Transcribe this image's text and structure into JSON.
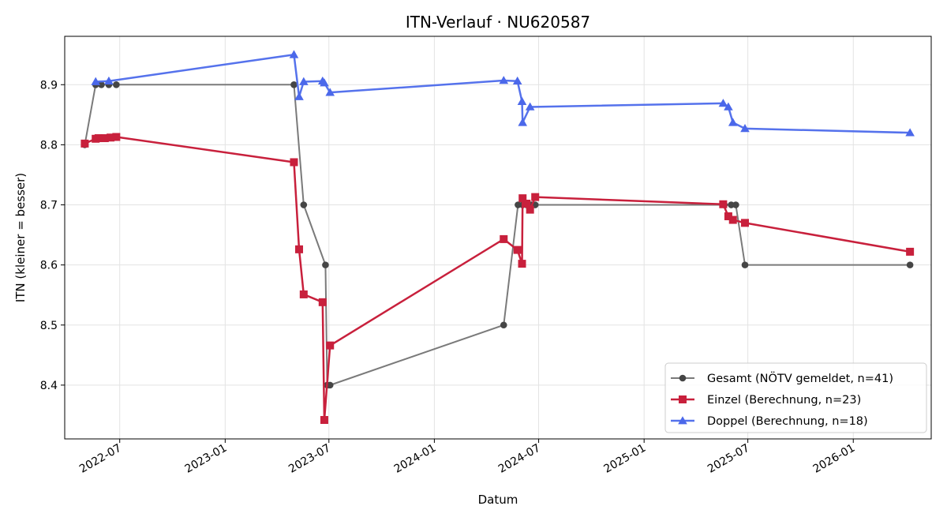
{
  "chart_data": {
    "type": "line",
    "title": "ITN-Verlauf · NU620587",
    "xlabel": "Datum",
    "ylabel": "ITN  (kleiner = besser)",
    "xlim": [
      "2022-03-27",
      "2026-05-17"
    ],
    "ylim": [
      8.3105,
      8.9805
    ],
    "y_ticks": [
      8.4,
      8.5,
      8.6,
      8.7,
      8.8,
      8.9
    ],
    "y_tick_labels": [
      "8.4",
      "8.5",
      "8.6",
      "8.7",
      "8.8",
      "8.9"
    ],
    "x_ticks": [
      "2022-07-01",
      "2023-01-01",
      "2023-07-01",
      "2024-01-01",
      "2024-07-01",
      "2025-01-01",
      "2025-07-01",
      "2026-01-01"
    ],
    "x_tick_labels": [
      "2022-07",
      "2023-01",
      "2023-07",
      "2024-01",
      "2024-07",
      "2025-01",
      "2025-07",
      "2026-01"
    ],
    "grid": true,
    "legend_position": "bottom-right",
    "series": [
      {
        "name": "Gesamt (NÖTV gemeldet, n=41)",
        "color": "#454545",
        "line_color": "#7a7a7a",
        "marker": "circle",
        "points": [
          [
            "2022-05-01",
            8.8
          ],
          [
            "2022-05-20",
            8.9
          ],
          [
            "2022-05-30",
            8.9
          ],
          [
            "2022-06-12",
            8.9
          ],
          [
            "2022-06-25",
            8.9
          ],
          [
            "2023-05-01",
            8.9
          ],
          [
            "2023-05-18",
            8.7
          ],
          [
            "2023-06-25",
            8.6
          ],
          [
            "2023-06-28",
            8.4
          ],
          [
            "2023-07-03",
            8.4
          ],
          [
            "2024-05-01",
            8.5
          ],
          [
            "2024-05-26",
            8.7
          ],
          [
            "2024-06-03",
            8.7
          ],
          [
            "2024-06-10",
            8.7
          ],
          [
            "2024-06-18",
            8.7
          ],
          [
            "2024-06-25",
            8.7
          ],
          [
            "2025-05-21",
            8.7
          ],
          [
            "2025-06-02",
            8.7
          ],
          [
            "2025-06-10",
            8.7
          ],
          [
            "2025-06-26",
            8.6
          ],
          [
            "2026-04-10",
            8.6
          ]
        ]
      },
      {
        "name": "Einzel (Berechnung, n=23)",
        "color": "#c8203c",
        "line_color": "#c8203c",
        "marker": "square",
        "points": [
          [
            "2022-05-01",
            8.802
          ],
          [
            "2022-05-20",
            8.81
          ],
          [
            "2022-05-25",
            8.811
          ],
          [
            "2022-06-05",
            8.811
          ],
          [
            "2022-06-15",
            8.812
          ],
          [
            "2022-06-25",
            8.813
          ],
          [
            "2023-05-01",
            8.771
          ],
          [
            "2023-05-10",
            8.626
          ],
          [
            "2023-05-18",
            8.551
          ],
          [
            "2023-06-20",
            8.538
          ],
          [
            "2023-06-23",
            8.342
          ],
          [
            "2023-07-03",
            8.466
          ],
          [
            "2024-05-01",
            8.643
          ],
          [
            "2024-05-25",
            8.625
          ],
          [
            "2024-06-02",
            8.602
          ],
          [
            "2024-06-03",
            8.711
          ],
          [
            "2024-06-10",
            8.702
          ],
          [
            "2024-06-16",
            8.692
          ],
          [
            "2024-06-25",
            8.713
          ],
          [
            "2025-05-19",
            8.701
          ],
          [
            "2025-05-28",
            8.681
          ],
          [
            "2025-06-05",
            8.675
          ],
          [
            "2025-06-26",
            8.67
          ],
          [
            "2026-04-10",
            8.622
          ]
        ]
      },
      {
        "name": "Doppel (Berechnung, n=18)",
        "color": "#4b68ea",
        "line_color": "#5572ec",
        "marker": "triangle",
        "points": [
          [
            "2022-05-20",
            8.905
          ],
          [
            "2022-06-12",
            8.906
          ],
          [
            "2023-05-01",
            8.95
          ],
          [
            "2023-05-10",
            8.88
          ],
          [
            "2023-05-18",
            8.905
          ],
          [
            "2023-06-20",
            8.906
          ],
          [
            "2023-06-23",
            8.903
          ],
          [
            "2023-07-03",
            8.887
          ],
          [
            "2024-05-01",
            8.907
          ],
          [
            "2024-05-25",
            8.906
          ],
          [
            "2024-06-02",
            8.872
          ],
          [
            "2024-06-03",
            8.837
          ],
          [
            "2024-06-16",
            8.863
          ],
          [
            "2025-05-19",
            8.869
          ],
          [
            "2025-05-28",
            8.863
          ],
          [
            "2025-06-05",
            8.837
          ],
          [
            "2025-06-26",
            8.827
          ],
          [
            "2026-04-10",
            8.82
          ]
        ]
      }
    ]
  }
}
